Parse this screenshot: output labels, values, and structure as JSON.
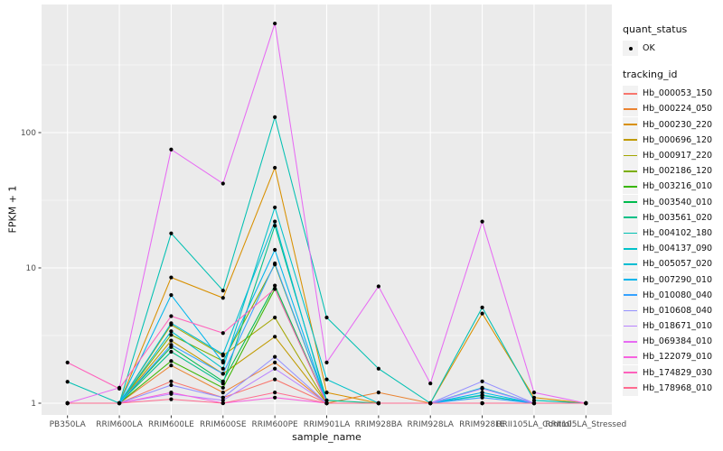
{
  "figure": {
    "background": "#FFFFFF",
    "panel_background": "#EBEBEB",
    "grid_color": "#FFFFFF",
    "axis_text_color": "#4D4D4D",
    "tick_color": "#333333",
    "legend_key_background": "#F2F2F2",
    "point_color": "#000000"
  },
  "legend": {
    "quant_status_title": "quant_status",
    "quant_status_item": "OK",
    "tracking_id_title": "tracking_id"
  },
  "chart_data": {
    "type": "line",
    "title": "",
    "xlabel": "sample_name",
    "ylabel": "FPKM + 1",
    "y_scale": "log10",
    "ylim": [
      1,
      700
    ],
    "y_ticks": [
      1,
      10,
      100
    ],
    "y_tick_labels": [
      "1",
      "10",
      "100"
    ],
    "y_minor_gridlines": [
      3.1623,
      31.623,
      316.23
    ],
    "grid": true,
    "legend_position": "right",
    "point_marker": "black-dot",
    "quant_status": "OK",
    "categories": [
      "PB350LA",
      "RRIM600LA",
      "RRIM600LE",
      "RRIM600SE",
      "RRIM600PE",
      "RRIM901LA",
      "RRIM928BA",
      "RRIM928LA",
      "RRIM928LE",
      "RRII105LA_Control",
      "RRII105LA_Stressed"
    ],
    "series": [
      {
        "name": "Hb_000053_150",
        "color": "#F8766D",
        "values": [
          1,
          1,
          1.45,
          1.1,
          1.5,
          1,
          1,
          1,
          1,
          1,
          1
        ]
      },
      {
        "name": "Hb_000224_050",
        "color": "#EA8331",
        "values": [
          1,
          1,
          1.9,
          1.2,
          2.0,
          1,
          1.2,
          1,
          1,
          1,
          1
        ]
      },
      {
        "name": "Hb_000230_220",
        "color": "#D89000",
        "values": [
          1,
          1,
          8.5,
          6.0,
          55,
          1.2,
          1,
          1,
          4.6,
          1.1,
          1
        ]
      },
      {
        "name": "Hb_000696_120",
        "color": "#C09B00",
        "values": [
          1,
          1,
          2.9,
          1.65,
          3.1,
          1,
          1,
          1,
          1,
          1,
          1
        ]
      },
      {
        "name": "Hb_000917_220",
        "color": "#A3A500",
        "values": [
          1,
          1,
          3.8,
          2.25,
          4.3,
          1,
          1,
          1,
          1,
          1,
          1
        ]
      },
      {
        "name": "Hb_002186_120",
        "color": "#7CAE00",
        "values": [
          1,
          1,
          3.2,
          2.05,
          10.6,
          1,
          1,
          1,
          1,
          1,
          1
        ]
      },
      {
        "name": "Hb_003216_010",
        "color": "#39B600",
        "values": [
          1,
          1,
          2.05,
          1.3,
          7.0,
          1,
          1,
          1,
          1,
          1,
          1
        ]
      },
      {
        "name": "Hb_003540_010",
        "color": "#00BB4E",
        "values": [
          1,
          1,
          2.6,
          1.45,
          7.4,
          1,
          1,
          1,
          1,
          1,
          1
        ]
      },
      {
        "name": "Hb_003561_020",
        "color": "#00C087",
        "values": [
          1,
          1,
          2.4,
          1.4,
          20.5,
          1.05,
          1,
          1,
          1.14,
          1,
          1
        ]
      },
      {
        "name": "Hb_004102_180",
        "color": "#00C0B2",
        "values": [
          1.44,
          1,
          18,
          6.8,
          130,
          4.3,
          1.8,
          1,
          5.1,
          1.05,
          1
        ]
      },
      {
        "name": "Hb_004137_090",
        "color": "#00C1C9",
        "values": [
          1,
          1,
          3.4,
          1.8,
          28,
          1.5,
          1,
          1,
          1.15,
          1,
          1
        ]
      },
      {
        "name": "Hb_005057_020",
        "color": "#00BDD2",
        "values": [
          1,
          1,
          3.9,
          2.3,
          22,
          1,
          1,
          1,
          1.3,
          1,
          1
        ]
      },
      {
        "name": "Hb_007290_010",
        "color": "#00B5EC",
        "values": [
          1,
          1,
          6.3,
          2.0,
          13.6,
          1,
          1,
          1,
          1.2,
          1,
          1
        ]
      },
      {
        "name": "Hb_010080_040",
        "color": "#35A2FF",
        "values": [
          1,
          1,
          2.7,
          1.65,
          10.8,
          1,
          1,
          1,
          1.1,
          1,
          1
        ]
      },
      {
        "name": "Hb_010608_040",
        "color": "#9590FF",
        "values": [
          1,
          1,
          1.36,
          1.1,
          2.2,
          1,
          1,
          1,
          1.45,
          1,
          1
        ]
      },
      {
        "name": "Hb_018671_010",
        "color": "#B983FF",
        "values": [
          1,
          1,
          1.17,
          1.05,
          1.8,
          1,
          1,
          1,
          1.28,
          1,
          1
        ]
      },
      {
        "name": "Hb_069384_010",
        "color": "#E76BF3",
        "values": [
          1,
          1.3,
          75,
          42,
          640,
          2.0,
          7.3,
          1.4,
          22,
          1.2,
          1
        ]
      },
      {
        "name": "Hb_122079_010",
        "color": "#F763DF",
        "values": [
          1,
          1,
          1.2,
          1,
          1.1,
          1,
          1,
          1,
          1,
          1,
          1
        ]
      },
      {
        "name": "Hb_174829_030",
        "color": "#FF62BC",
        "values": [
          2.0,
          1.28,
          4.4,
          3.3,
          7.0,
          1,
          1,
          1,
          1,
          1,
          1
        ]
      },
      {
        "name": "Hb_178968_010",
        "color": "#FF6C90",
        "values": [
          1,
          1,
          1.07,
          1,
          1.2,
          1,
          1,
          1,
          1,
          1,
          1
        ]
      }
    ]
  }
}
